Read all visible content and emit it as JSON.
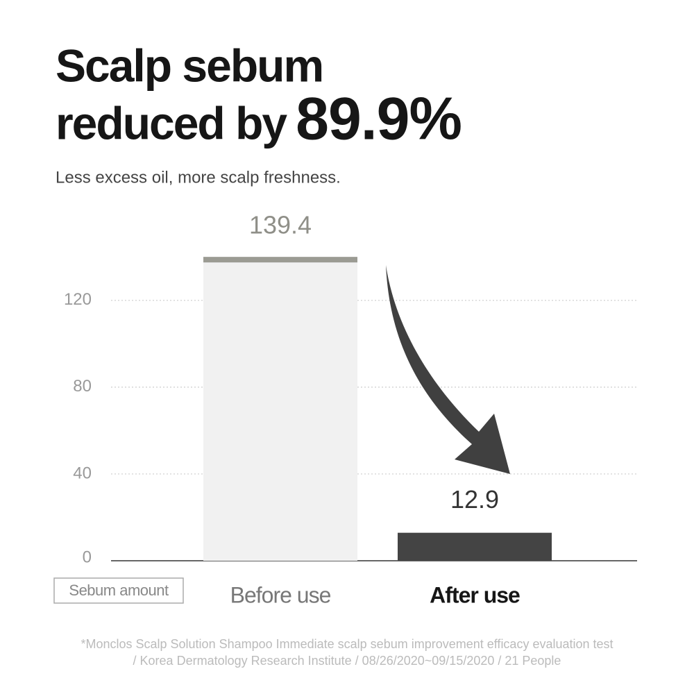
{
  "chart_data": {
    "type": "bar",
    "title_lines": [
      "Scalp sebum",
      "reduced by"
    ],
    "title_highlight": "89.9%",
    "subtitle": "Less excess oil, more scalp freshness.",
    "y_label": "Sebum amount",
    "categories": [
      "Before use",
      "After use"
    ],
    "values": [
      139.4,
      12.9
    ],
    "colors": [
      "#f1f1f1",
      "#444444"
    ],
    "cap_color": "#9b9b93",
    "ylim": [
      0,
      150
    ],
    "yticks": [
      0,
      40,
      80,
      120
    ],
    "grid": true,
    "footnote": [
      "*Monclos Scalp Solution Shampoo Immediate scalp sebum improvement efficacy evaluation test",
      "/ Korea Dermatology Research Institute / 08/26/2020~09/15/2020 / 21 People"
    ]
  }
}
